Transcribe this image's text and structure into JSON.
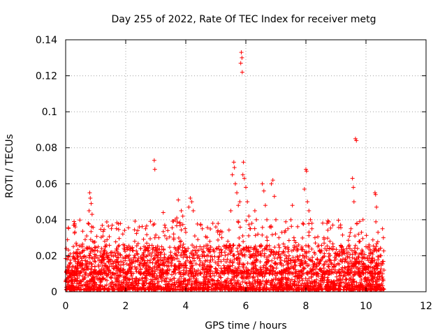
{
  "chart_data": {
    "type": "scatter",
    "title": "Day 255 of 2022, Rate Of TEC Index for receiver metg",
    "xlabel": "GPS time / hours",
    "ylabel": "ROTI / TECUs",
    "xlim": [
      0,
      12
    ],
    "ylim": [
      0,
      0.14
    ],
    "xticks": [
      0,
      2,
      4,
      6,
      8,
      10,
      12
    ],
    "yticks": [
      0,
      0.02,
      0.04,
      0.06,
      0.08,
      0.1,
      0.12,
      0.14
    ],
    "xtick_labels": [
      "0",
      "2",
      "4",
      "6",
      "8",
      "10",
      "12"
    ],
    "ytick_labels": [
      "0",
      "0.02",
      "0.04",
      "0.06",
      "0.08",
      "0.1",
      "0.12",
      "0.14"
    ],
    "grid": true,
    "marker": "+",
    "color": "#ff0000",
    "series": [
      {
        "points": [
          [
            0.02,
            0.024
          ],
          [
            0.05,
            0.018
          ],
          [
            0.08,
            0.012
          ],
          [
            0.1,
            0.008
          ],
          [
            0.12,
            0.015
          ],
          [
            0.15,
            0.021
          ],
          [
            0.18,
            0.009
          ],
          [
            0.2,
            0.006
          ],
          [
            0.22,
            0.014
          ],
          [
            0.25,
            0.011
          ],
          [
            0.28,
            0.039
          ],
          [
            0.3,
            0.037
          ],
          [
            0.32,
            0.036
          ],
          [
            0.35,
            0.027
          ],
          [
            0.38,
            0.019
          ],
          [
            0.4,
            0.013
          ],
          [
            0.45,
            0.009
          ],
          [
            0.5,
            0.016
          ],
          [
            0.55,
            0.022
          ],
          [
            0.6,
            0.012
          ],
          [
            0.65,
            0.029
          ],
          [
            0.7,
            0.031
          ],
          [
            0.75,
            0.038
          ],
          [
            0.78,
            0.045
          ],
          [
            0.8,
            0.055
          ],
          [
            0.82,
            0.052
          ],
          [
            0.85,
            0.049
          ],
          [
            0.88,
            0.043
          ],
          [
            0.9,
            0.028
          ],
          [
            0.95,
            0.017
          ],
          [
            1.0,
            0.011
          ],
          [
            1.05,
            0.007
          ],
          [
            1.1,
            0.014
          ],
          [
            1.15,
            0.02
          ],
          [
            1.2,
            0.024
          ],
          [
            1.25,
            0.018
          ],
          [
            1.3,
            0.028
          ],
          [
            1.35,
            0.026
          ],
          [
            1.4,
            0.019
          ],
          [
            1.45,
            0.012
          ],
          [
            1.5,
            0.008
          ],
          [
            1.6,
            0.01
          ],
          [
            1.7,
            0.006
          ],
          [
            1.8,
            0.009
          ],
          [
            1.9,
            0.012
          ],
          [
            2.0,
            0.007
          ],
          [
            2.1,
            0.011
          ],
          [
            2.2,
            0.016
          ],
          [
            2.3,
            0.028
          ],
          [
            2.4,
            0.034
          ],
          [
            2.45,
            0.036
          ],
          [
            2.5,
            0.024
          ],
          [
            2.6,
            0.019
          ],
          [
            2.7,
            0.027
          ],
          [
            2.8,
            0.021
          ],
          [
            2.9,
            0.012
          ],
          [
            2.95,
            0.073
          ],
          [
            2.97,
            0.068
          ],
          [
            3.0,
            0.016
          ],
          [
            3.1,
            0.03
          ],
          [
            3.2,
            0.025
          ],
          [
            3.25,
            0.044
          ],
          [
            3.3,
            0.037
          ],
          [
            3.4,
            0.034
          ],
          [
            3.5,
            0.022
          ],
          [
            3.6,
            0.029
          ],
          [
            3.7,
            0.041
          ],
          [
            3.75,
            0.051
          ],
          [
            3.8,
            0.038
          ],
          [
            3.85,
            0.045
          ],
          [
            3.9,
            0.042
          ],
          [
            4.0,
            0.033
          ],
          [
            4.1,
            0.047
          ],
          [
            4.15,
            0.052
          ],
          [
            4.2,
            0.05
          ],
          [
            4.25,
            0.045
          ],
          [
            4.3,
            0.031
          ],
          [
            4.4,
            0.029
          ],
          [
            4.5,
            0.037
          ],
          [
            4.55,
            0.035
          ],
          [
            4.6,
            0.025
          ],
          [
            4.7,
            0.02
          ],
          [
            4.8,
            0.028
          ],
          [
            4.9,
            0.038
          ],
          [
            5.0,
            0.036
          ],
          [
            5.1,
            0.025
          ],
          [
            5.2,
            0.03
          ],
          [
            5.3,
            0.022
          ],
          [
            5.4,
            0.028
          ],
          [
            5.5,
            0.045
          ],
          [
            5.55,
            0.065
          ],
          [
            5.6,
            0.072
          ],
          [
            5.62,
            0.069
          ],
          [
            5.65,
            0.06
          ],
          [
            5.7,
            0.055
          ],
          [
            5.75,
            0.048
          ],
          [
            5.8,
            0.05
          ],
          [
            5.83,
            0.127
          ],
          [
            5.85,
            0.133
          ],
          [
            5.87,
            0.13
          ],
          [
            5.88,
            0.122
          ],
          [
            5.9,
            0.065
          ],
          [
            5.92,
            0.072
          ],
          [
            5.95,
            0.063
          ],
          [
            6.0,
            0.058
          ],
          [
            6.05,
            0.05
          ],
          [
            6.1,
            0.042
          ],
          [
            6.15,
            0.035
          ],
          [
            6.2,
            0.038
          ],
          [
            6.3,
            0.045
          ],
          [
            6.35,
            0.04
          ],
          [
            6.4,
            0.032
          ],
          [
            6.5,
            0.025
          ],
          [
            6.55,
            0.06
          ],
          [
            6.6,
            0.056
          ],
          [
            6.65,
            0.048
          ],
          [
            6.7,
            0.04
          ],
          [
            6.8,
            0.036
          ],
          [
            6.85,
            0.06
          ],
          [
            6.9,
            0.062
          ],
          [
            6.95,
            0.053
          ],
          [
            7.0,
            0.04
          ],
          [
            7.1,
            0.03
          ],
          [
            7.2,
            0.033
          ],
          [
            7.3,
            0.025
          ],
          [
            7.4,
            0.035
          ],
          [
            7.5,
            0.04
          ],
          [
            7.55,
            0.048
          ],
          [
            7.6,
            0.03
          ],
          [
            7.7,
            0.024
          ],
          [
            7.8,
            0.02
          ],
          [
            7.9,
            0.038
          ],
          [
            7.95,
            0.057
          ],
          [
            8.0,
            0.068
          ],
          [
            8.02,
            0.067
          ],
          [
            8.05,
            0.05
          ],
          [
            8.1,
            0.045
          ],
          [
            8.15,
            0.04
          ],
          [
            8.2,
            0.035
          ],
          [
            8.3,
            0.03
          ],
          [
            8.4,
            0.025
          ],
          [
            8.5,
            0.022
          ],
          [
            8.6,
            0.03
          ],
          [
            8.7,
            0.038
          ],
          [
            8.8,
            0.028
          ],
          [
            8.9,
            0.024
          ],
          [
            9.0,
            0.021
          ],
          [
            9.1,
            0.02
          ],
          [
            9.2,
            0.025
          ],
          [
            9.3,
            0.018
          ],
          [
            9.4,
            0.022
          ],
          [
            9.5,
            0.035
          ],
          [
            9.55,
            0.063
          ],
          [
            9.58,
            0.058
          ],
          [
            9.6,
            0.05
          ],
          [
            9.65,
            0.085
          ],
          [
            9.68,
            0.084
          ],
          [
            9.7,
            0.038
          ],
          [
            9.75,
            0.032
          ],
          [
            9.8,
            0.028
          ],
          [
            9.85,
            0.033
          ],
          [
            9.9,
            0.04
          ],
          [
            10.0,
            0.025
          ],
          [
            10.1,
            0.02
          ],
          [
            10.2,
            0.017
          ],
          [
            10.3,
            0.055
          ],
          [
            10.32,
            0.054
          ],
          [
            10.35,
            0.047
          ],
          [
            10.4,
            0.033
          ],
          [
            10.5,
            0.02
          ],
          [
            10.55,
            0.035
          ],
          [
            10.58,
            0.03
          ],
          [
            10.6,
            0.012
          ]
        ]
      }
    ],
    "background": {
      "x_range": [
        0,
        10.6
      ],
      "y_range": [
        0,
        0.025
      ],
      "density_note_omitted": true
    }
  }
}
